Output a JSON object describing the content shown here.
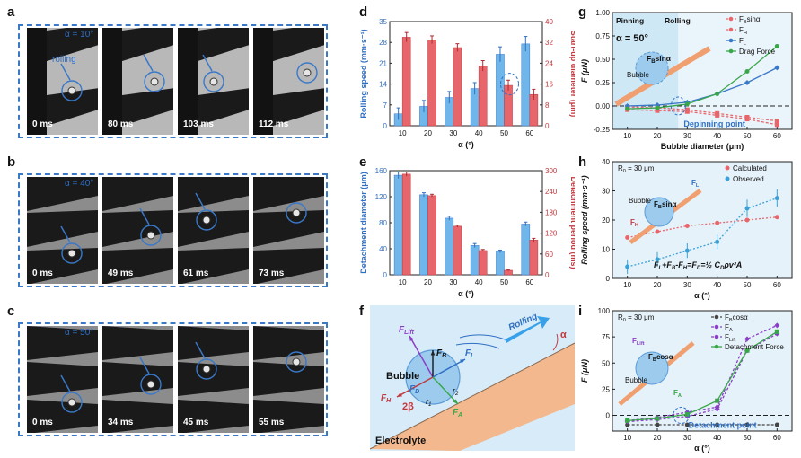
{
  "panels": {
    "a": "a",
    "b": "b",
    "c": "c",
    "d": "d",
    "e": "e",
    "f": "f",
    "g": "g",
    "h": "h",
    "i": "i"
  },
  "strips": [
    {
      "angle": "α = 10°",
      "note": "rolling",
      "times": [
        "0 ms",
        "80 ms",
        "103 ms",
        "112 ms"
      ]
    },
    {
      "angle": "α = 40°",
      "note": "",
      "times": [
        "0 ms",
        "49 ms",
        "61 ms",
        "73 ms"
      ]
    },
    {
      "angle": "α = 50°",
      "note": "",
      "times": [
        "0 ms",
        "34 ms",
        "45 ms",
        "55 ms"
      ]
    }
  ],
  "colors": {
    "blue": "#6fb6ea",
    "red": "#e7666b",
    "accent": "#2f6fc4",
    "green": "#3aa64a",
    "purple": "#8a3fc4",
    "orange": "#f0a070"
  },
  "diagram_f": {
    "bubble": "Bubble",
    "electrolyte": "Electrolyte",
    "rolling": "Rolling",
    "alpha": "α",
    "beta": "2β",
    "f_lift": "F",
    "f_lift_sub": "Lift",
    "fb": "F",
    "fb_sub": "B",
    "fd": "F",
    "fd_sub": "D",
    "fh": "F",
    "fh_sub": "H",
    "fl": "F",
    "fl_sub": "L",
    "fa": "F",
    "fa_sub": "A",
    "r1": "r",
    "r1_sub": "1",
    "r2": "r",
    "r2_sub": "2"
  },
  "chart_data": [
    {
      "id": "d",
      "type": "bar",
      "categories": [
        "10",
        "20",
        "30",
        "40",
        "50",
        "60"
      ],
      "xlabel": "α (°)",
      "ylabel": "Rolling speed (mm·s⁻¹)",
      "y2label": "Start-up diameter (μm)",
      "ylim": [
        0,
        35
      ],
      "y2lim": [
        0,
        40
      ],
      "yticks": [
        "0",
        "7",
        "14",
        "21",
        "28",
        "35"
      ],
      "y2ticks": [
        "0",
        "8",
        "16",
        "24",
        "32",
        "40"
      ],
      "series": [
        {
          "name": "Rolling speed",
          "axis": "left",
          "values": [
            4,
            6.5,
            9.5,
            12.5,
            24,
            27.5
          ],
          "err": [
            2,
            2,
            2,
            2,
            2.5,
            2.5
          ]
        },
        {
          "name": "Start-up diameter",
          "axis": "right",
          "values": [
            34,
            33,
            30,
            23,
            15.5,
            12
          ],
          "err": [
            1.8,
            1.5,
            1.5,
            2,
            2,
            2
          ]
        }
      ]
    },
    {
      "id": "e",
      "type": "bar",
      "categories": [
        "10",
        "20",
        "30",
        "40",
        "50",
        "60"
      ],
      "xlabel": "α (°)",
      "ylabel": "Detachment diameter (μm)",
      "y2label": "Detachment period (ms)",
      "ylim": [
        0,
        160
      ],
      "y2lim": [
        0,
        300
      ],
      "yticks": [
        "0",
        "40",
        "80",
        "120",
        "160"
      ],
      "y2ticks": [
        "0",
        "60",
        "120",
        "180",
        "240",
        "300"
      ],
      "series": [
        {
          "name": "Detachment diameter",
          "axis": "left",
          "values": [
            153,
            123,
            87,
            45,
            36,
            78
          ],
          "err": [
            5,
            3,
            3,
            3,
            2,
            3
          ]
        },
        {
          "name": "Detachment period",
          "axis": "right",
          "values": [
            290,
            228,
            140,
            70,
            13,
            100
          ],
          "err": [
            6,
            4,
            3,
            3,
            2,
            5
          ]
        }
      ]
    },
    {
      "id": "g",
      "type": "line",
      "title": "α = 50°",
      "xlabel": "Bubble diameter (μm)",
      "ylabel": "F (μN)",
      "xlim": [
        5,
        65
      ],
      "ylim": [
        -0.25,
        1.0
      ],
      "xticks": [
        "10",
        "20",
        "30",
        "40",
        "50",
        "60"
      ],
      "yticks": [
        "-0.25",
        "0.00",
        "0.25",
        "0.50",
        "0.75",
        "1.00"
      ],
      "x": [
        10,
        20,
        30,
        40,
        50,
        60
      ],
      "labels": {
        "pinning": "Pinning",
        "rolling": "Rolling",
        "depin": "Depinning point",
        "bubble": "Bubble",
        "fbsina": "F",
        "fbsina_sub": "B",
        "fbsina_tail": "sinα"
      },
      "series": [
        {
          "name": "F",
          "sub": "B",
          "tail": "sinα",
          "color": "#e7666b",
          "values": [
            -0.01,
            -0.02,
            -0.04,
            -0.08,
            -0.12,
            -0.16
          ]
        },
        {
          "name": "F",
          "sub": "H",
          "tail": "",
          "color": "#e7666b",
          "values": [
            -0.04,
            -0.05,
            -0.06,
            -0.1,
            -0.14,
            -0.2
          ]
        },
        {
          "name": "F",
          "sub": "L",
          "tail": "",
          "color": "#3a78c8",
          "values": [
            0.0,
            0.01,
            0.04,
            0.13,
            0.25,
            0.41
          ]
        },
        {
          "name": "Drag Force",
          "sub": "",
          "tail": "",
          "color": "#3aa64a",
          "values": [
            -0.03,
            -0.02,
            0.02,
            0.13,
            0.37,
            0.64
          ]
        }
      ]
    },
    {
      "id": "h",
      "type": "line",
      "xlabel": "α (°)",
      "ylabel": "Rolling speed (mm·s⁻¹)",
      "xlim": [
        5,
        65
      ],
      "ylim": [
        0,
        40
      ],
      "xticks": [
        "10",
        "20",
        "30",
        "40",
        "50",
        "60"
      ],
      "yticks": [
        "0",
        "10",
        "20",
        "30",
        "40"
      ],
      "x": [
        10,
        20,
        30,
        40,
        50,
        60
      ],
      "labels": {
        "r0": "R",
        "r0_sub": "0",
        "r0_tail": " = 30 μm",
        "bubble": "Bubble",
        "fbsina": "F",
        "fbsina_sub": "B",
        "fbsina_tail": "sinα",
        "fh": "F",
        "fh_sub": "H",
        "fl": "F",
        "fl_sub": "L",
        "equation": "F",
        "eq1": "L",
        "eq2": "+F",
        "eq3": "B",
        "eq4": "-F",
        "eq5": "H",
        "eq6": "=F",
        "eq7": "D",
        "eq8": "=",
        "eq9": "½ C",
        "eq10": "D",
        "eq11": "ρv²A"
      },
      "series": [
        {
          "name": "Calculated",
          "color": "#e7666b",
          "values": [
            14,
            16,
            18,
            19,
            20,
            21
          ],
          "err": null
        },
        {
          "name": "Observed",
          "color": "#3aa1d8",
          "values": [
            4,
            6.5,
            9.5,
            12.5,
            24,
            27.5
          ],
          "err": [
            2.5,
            2.5,
            2.5,
            2.5,
            3,
            3
          ]
        }
      ]
    },
    {
      "id": "i",
      "type": "line",
      "xlabel": "α (°)",
      "ylabel": "F (μN)",
      "xlim": [
        5,
        65
      ],
      "ylim": [
        -15,
        100
      ],
      "xticks": [
        "10",
        "20",
        "30",
        "40",
        "50",
        "60"
      ],
      "yticks": [
        "0",
        "25",
        "50",
        "75",
        "100"
      ],
      "x": [
        10,
        20,
        30,
        40,
        50,
        60
      ],
      "labels": {
        "r0": "R",
        "r0_sub": "0",
        "r0_tail": " = 30 μm",
        "bubble": "Bubble",
        "fbcosa": "F",
        "fbcosa_sub": "B",
        "fbcosa_tail": "cosα",
        "detach": "Detachment point",
        "flift": "F",
        "flift_sub": "Lift",
        "fa": "F",
        "fa_sub": "A"
      },
      "series": [
        {
          "name": "F",
          "sub": "B",
          "tail": "cosα",
          "color": "#444444",
          "values": [
            -9,
            -9,
            -9,
            -9,
            -9,
            -9
          ]
        },
        {
          "name": "F",
          "sub": "A",
          "tail": "",
          "color": "#8a3fc4",
          "values": [
            -5,
            -2,
            3,
            8,
            73,
            86
          ]
        },
        {
          "name": "F",
          "sub": "Lift",
          "tail": "",
          "color": "#8a3fc4",
          "values": [
            -6,
            -4,
            -1,
            6,
            62,
            78
          ]
        },
        {
          "name": "Detachment Force",
          "sub": "",
          "tail": "",
          "color": "#3aa64a",
          "values": [
            -5,
            -3,
            1,
            14,
            62,
            80
          ]
        }
      ]
    }
  ]
}
